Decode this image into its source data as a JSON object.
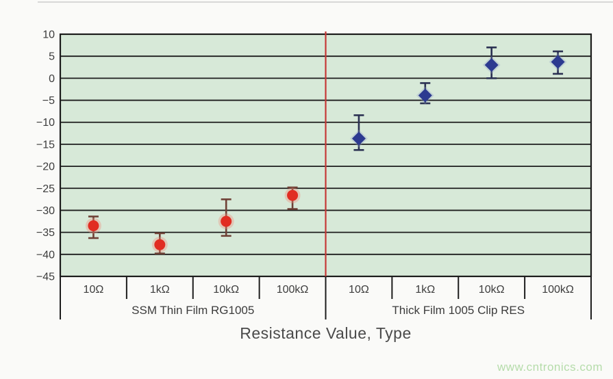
{
  "page": {
    "background": "#fafaf8",
    "top_border_color": "#cccccc"
  },
  "watermark": {
    "text": "www.cntronics.com",
    "color": "#b5dcaa"
  },
  "chart_data": {
    "type": "scatter",
    "title": "",
    "xlabel": "Resistance Value, Type",
    "ylabel": "",
    "ylim": [
      -45,
      10
    ],
    "yticks": [
      10,
      5,
      0,
      -5,
      -10,
      -15,
      -20,
      -25,
      -30,
      -35,
      -40,
      -45
    ],
    "grid": true,
    "legend": "none",
    "plot_bg_color": "#d7e9d8",
    "grid_color": "#1c1c1c",
    "axis_text_color": "#3c3c3c",
    "divider_color": "#c53836",
    "groups": [
      {
        "label": "SSM Thin Film RG1005",
        "marker": "circle",
        "marker_color": "#e12d22",
        "halo_color": "#f08a78",
        "error_bar_color": "#6f4136",
        "categories": [
          "10Ω",
          "1kΩ",
          "10kΩ",
          "100kΩ"
        ],
        "points": [
          {
            "category": "10Ω",
            "value": -33.5,
            "err_high": -31.4,
            "err_low": -36.3
          },
          {
            "category": "1kΩ",
            "value": -37.8,
            "err_high": -35.2,
            "err_low": -39.8
          },
          {
            "category": "10kΩ",
            "value": -32.5,
            "err_high": -27.5,
            "err_low": -35.8
          },
          {
            "category": "100kΩ",
            "value": -26.6,
            "err_high": -24.8,
            "err_low": -29.7
          }
        ]
      },
      {
        "label": "Thick Film 1005 Clip RES",
        "marker": "diamond",
        "marker_color": "#2c3a90",
        "halo_color": "#8a9ac8",
        "error_bar_color": "#2b3152",
        "categories": [
          "10Ω",
          "1kΩ",
          "10kΩ",
          "100kΩ"
        ],
        "points": [
          {
            "category": "10Ω",
            "value": -13.7,
            "err_high": -8.4,
            "err_low": -16.3
          },
          {
            "category": "1kΩ",
            "value": -3.9,
            "err_high": -1.1,
            "err_low": -5.7
          },
          {
            "category": "10kΩ",
            "value": 3.0,
            "err_high": 7.0,
            "err_low": 0.0
          },
          {
            "category": "100kΩ",
            "value": 3.7,
            "err_high": 6.1,
            "err_low": 1.0
          }
        ]
      }
    ]
  }
}
